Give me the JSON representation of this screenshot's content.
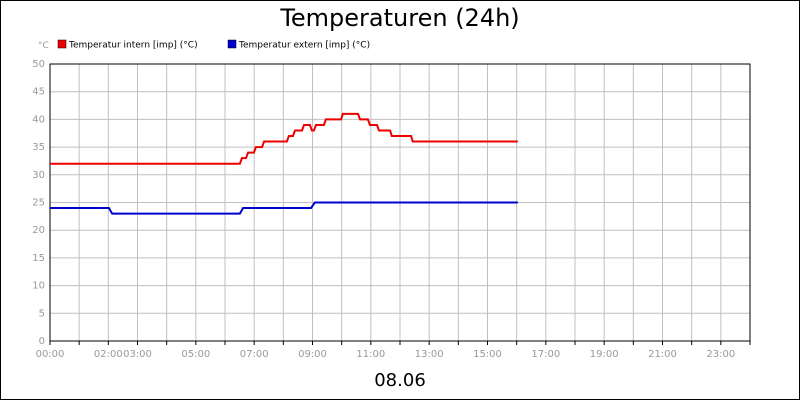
{
  "chart_data": {
    "type": "line",
    "title": "Temperaturen (24h)",
    "ylabel": "°C",
    "xlabel": "08.06",
    "xlim": [
      0,
      24
    ],
    "ylim": [
      0,
      50
    ],
    "yticks": [
      0,
      5,
      10,
      15,
      20,
      25,
      30,
      35,
      40,
      45,
      50
    ],
    "xticks": [
      {
        "value": 0,
        "label": "00:00"
      },
      {
        "value": 1,
        "label": null
      },
      {
        "value": 2,
        "label": "02:00"
      },
      {
        "value": 3,
        "label": "03:00"
      },
      {
        "value": 4,
        "label": null
      },
      {
        "value": 5,
        "label": "05:00"
      },
      {
        "value": 6,
        "label": null
      },
      {
        "value": 7,
        "label": "07:00"
      },
      {
        "value": 8,
        "label": null
      },
      {
        "value": 9,
        "label": "09:00"
      },
      {
        "value": 10,
        "label": null
      },
      {
        "value": 11,
        "label": "11:00"
      },
      {
        "value": 12,
        "label": null
      },
      {
        "value": 13,
        "label": "13:00"
      },
      {
        "value": 14,
        "label": null
      },
      {
        "value": 15,
        "label": "15:00"
      },
      {
        "value": 16,
        "label": null
      },
      {
        "value": 17,
        "label": "17:00"
      },
      {
        "value": 18,
        "label": null
      },
      {
        "value": 19,
        "label": "19:00"
      },
      {
        "value": 20,
        "label": null
      },
      {
        "value": 21,
        "label": "21:00"
      },
      {
        "value": 22,
        "label": null
      },
      {
        "value": 23,
        "label": "23:00"
      },
      {
        "value": 24,
        "label": null
      }
    ],
    "grid": true,
    "series": [
      {
        "name": "Temperatur intern [imp] (°C)",
        "color": "#ee0000",
        "x": [
          0,
          6.51,
          6.58,
          6.72,
          6.79,
          6.99,
          7.06,
          7.27,
          7.34,
          8.12,
          8.19,
          8.33,
          8.4,
          8.64,
          8.71,
          8.91,
          8.98,
          9.05,
          9.12,
          9.39,
          9.46,
          9.98,
          10.04,
          10.56,
          10.63,
          10.9,
          10.97,
          11.21,
          11.28,
          11.66,
          11.72,
          12.38,
          12.44,
          16.04
        ],
        "values": [
          32,
          32,
          33,
          33,
          34,
          34,
          35,
          35,
          36,
          36,
          37,
          37,
          38,
          38,
          39,
          39,
          38,
          38,
          39,
          39,
          40,
          40,
          41,
          41,
          40,
          40,
          39,
          39,
          38,
          38,
          37,
          37,
          36,
          36
        ]
      },
      {
        "name": "Temperatur extern [imp] (°C)",
        "color": "#0000cc",
        "x": [
          0,
          2.02,
          2.13,
          6.51,
          6.62,
          8.95,
          9.08,
          16.04
        ],
        "values": [
          24,
          24,
          23,
          23,
          24,
          24,
          25,
          25
        ]
      }
    ]
  }
}
